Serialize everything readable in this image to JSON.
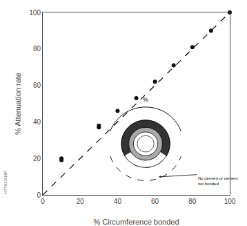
{
  "chart_data": {
    "type": "scatter",
    "xlabel": "% Circumference bonded",
    "ylabel": "% Attenuation rate",
    "xlim": [
      0,
      100
    ],
    "ylim": [
      0,
      100
    ],
    "xticks": [
      0,
      20,
      40,
      60,
      80,
      100
    ],
    "yticks": [
      0,
      20,
      40,
      60,
      80,
      100
    ],
    "grid": false,
    "series": [
      {
        "type": "line",
        "x": [
          0,
          100
        ],
        "values": [
          0,
          100
        ],
        "color": "#000000",
        "line_style": "dashed"
      },
      {
        "type": "scatter",
        "x": [
          10,
          10,
          30,
          30,
          40,
          50,
          60,
          70,
          80,
          90,
          100
        ],
        "values": [
          19,
          20,
          37,
          38,
          46,
          53,
          62,
          71,
          81,
          90,
          100
        ],
        "color": "#111111",
        "marker": "circle"
      }
    ],
    "annotations": [
      "%",
      "No cement or cement\nnot bonded",
      "H77633/19P"
    ]
  }
}
